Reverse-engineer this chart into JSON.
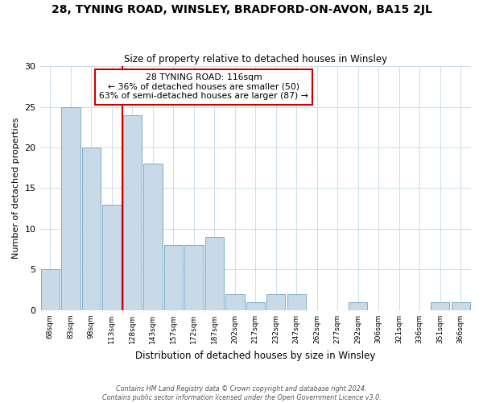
{
  "title": "28, TYNING ROAD, WINSLEY, BRADFORD-ON-AVON, BA15 2JL",
  "subtitle": "Size of property relative to detached houses in Winsley",
  "xlabel": "Distribution of detached houses by size in Winsley",
  "ylabel": "Number of detached properties",
  "bin_labels": [
    "68sqm",
    "83sqm",
    "98sqm",
    "113sqm",
    "128sqm",
    "143sqm",
    "157sqm",
    "172sqm",
    "187sqm",
    "202sqm",
    "217sqm",
    "232sqm",
    "247sqm",
    "262sqm",
    "277sqm",
    "292sqm",
    "306sqm",
    "321sqm",
    "336sqm",
    "351sqm",
    "366sqm"
  ],
  "bar_values": [
    5,
    25,
    20,
    13,
    24,
    18,
    8,
    8,
    9,
    2,
    1,
    2,
    2,
    0,
    0,
    1,
    0,
    0,
    0,
    1,
    1
  ],
  "bar_color": "#c8d9e8",
  "bar_edge_color": "#7aaec8",
  "vline_color": "#cc0000",
  "annotation_title": "28 TYNING ROAD: 116sqm",
  "annotation_line1": "← 36% of detached houses are smaller (50)",
  "annotation_line2": "63% of semi-detached houses are larger (87) →",
  "annotation_box_edge": "#cc0000",
  "ylim": [
    0,
    30
  ],
  "yticks": [
    0,
    5,
    10,
    15,
    20,
    25,
    30
  ],
  "footer_line1": "Contains HM Land Registry data © Crown copyright and database right 2024.",
  "footer_line2": "Contains public sector information licensed under the Open Government Licence v3.0.",
  "bg_color": "#ffffff",
  "grid_color": "#ccdde8"
}
